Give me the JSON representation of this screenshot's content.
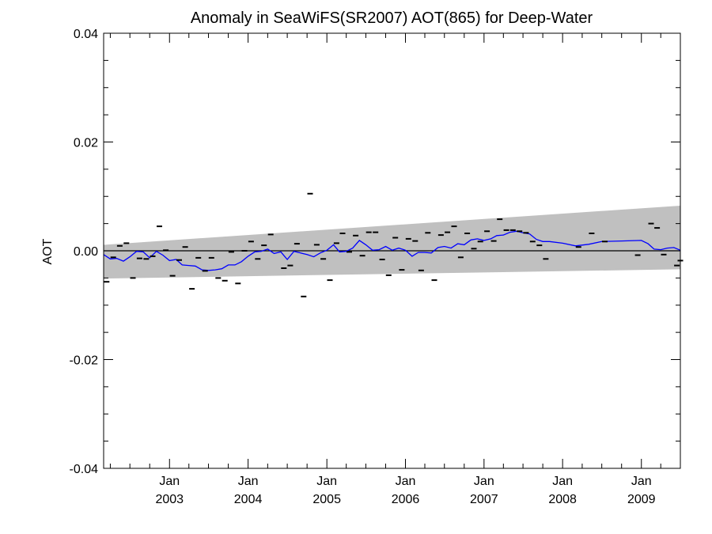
{
  "chart_data": {
    "type": "line",
    "title": "Anomaly in SeaWiFS(SR2007) AOT(865) for Deep-Water",
    "xlabel": "",
    "ylabel": "AOT",
    "xlim": [
      "2002-03-01",
      "2009-07-01"
    ],
    "ylim": [
      -0.04,
      0.04
    ],
    "y_ticks": [
      {
        "value": 0.04,
        "label": "0.04"
      },
      {
        "value": 0.02,
        "label": "0.02"
      },
      {
        "value": 0.0,
        "label": "0.00"
      },
      {
        "value": -0.02,
        "label": "-0.02"
      },
      {
        "value": -0.04,
        "label": "-0.04"
      }
    ],
    "x_ticks": [
      {
        "date": "2003-01-01",
        "month": "Jan",
        "year": "2003"
      },
      {
        "date": "2004-01-01",
        "month": "Jan",
        "year": "2004"
      },
      {
        "date": "2005-01-01",
        "month": "Jan",
        "year": "2005"
      },
      {
        "date": "2006-01-01",
        "month": "Jan",
        "year": "2006"
      },
      {
        "date": "2007-01-01",
        "month": "Jan",
        "year": "2007"
      },
      {
        "date": "2008-01-01",
        "month": "Jan",
        "year": "2008"
      },
      {
        "date": "2009-01-01",
        "month": "Jan",
        "year": "2009"
      }
    ],
    "band": {
      "color": "#c0c0c0",
      "start": {
        "date": "2002-03-01",
        "lower": -0.0051,
        "upper": 0.0011
      },
      "end": {
        "date": "2009-07-01",
        "lower": -0.0034,
        "upper": 0.0083
      }
    },
    "zero_line": {
      "value": 0.0,
      "color": "#000000"
    },
    "series": [
      {
        "style": "marks",
        "color": "#000000",
        "points": [
          {
            "date": "2002-03-15",
            "value": -0.0057
          },
          {
            "date": "2002-04-15",
            "value": -0.0012
          },
          {
            "date": "2002-05-15",
            "value": 0.0009
          },
          {
            "date": "2002-06-15",
            "value": 0.0014
          },
          {
            "date": "2002-07-15",
            "value": -0.005
          },
          {
            "date": "2002-08-15",
            "value": -0.0014
          },
          {
            "date": "2002-09-15",
            "value": -0.0015
          },
          {
            "date": "2002-10-15",
            "value": -0.001
          },
          {
            "date": "2002-11-15",
            "value": 0.0045
          },
          {
            "date": "2002-12-15",
            "value": 0.0001
          },
          {
            "date": "2003-01-15",
            "value": -0.0046
          },
          {
            "date": "2003-02-15",
            "value": -0.0017
          },
          {
            "date": "2003-03-15",
            "value": 0.0007
          },
          {
            "date": "2003-04-15",
            "value": -0.007
          },
          {
            "date": "2003-05-15",
            "value": -0.0013
          },
          {
            "date": "2003-06-15",
            "value": -0.0037
          },
          {
            "date": "2003-07-15",
            "value": -0.0013
          },
          {
            "date": "2003-08-15",
            "value": -0.005
          },
          {
            "date": "2003-09-15",
            "value": -0.0055
          },
          {
            "date": "2003-10-15",
            "value": -0.0002
          },
          {
            "date": "2003-11-15",
            "value": -0.006
          },
          {
            "date": "2003-12-15",
            "value": 0.0
          },
          {
            "date": "2004-01-15",
            "value": 0.0017
          },
          {
            "date": "2004-02-15",
            "value": -0.0015
          },
          {
            "date": "2004-03-15",
            "value": 0.001
          },
          {
            "date": "2004-04-15",
            "value": 0.003
          },
          {
            "date": "2004-06-15",
            "value": -0.0032
          },
          {
            "date": "2004-07-15",
            "value": -0.0027
          },
          {
            "date": "2004-08-15",
            "value": 0.0013
          },
          {
            "date": "2004-09-15",
            "value": -0.0084
          },
          {
            "date": "2004-10-15",
            "value": 0.0105
          },
          {
            "date": "2004-11-15",
            "value": 0.0011
          },
          {
            "date": "2004-12-15",
            "value": -0.0015
          },
          {
            "date": "2005-01-15",
            "value": -0.0054
          },
          {
            "date": "2005-02-15",
            "value": 0.0014
          },
          {
            "date": "2005-03-15",
            "value": 0.0032
          },
          {
            "date": "2005-04-15",
            "value": -0.0002
          },
          {
            "date": "2005-05-15",
            "value": 0.0028
          },
          {
            "date": "2005-06-15",
            "value": -0.0009
          },
          {
            "date": "2005-07-15",
            "value": 0.0034
          },
          {
            "date": "2005-08-15",
            "value": 0.0034
          },
          {
            "date": "2005-09-15",
            "value": -0.0016
          },
          {
            "date": "2005-10-15",
            "value": -0.0045
          },
          {
            "date": "2005-11-15",
            "value": 0.0024
          },
          {
            "date": "2005-12-15",
            "value": -0.0035
          },
          {
            "date": "2006-01-15",
            "value": 0.0022
          },
          {
            "date": "2006-02-15",
            "value": 0.0018
          },
          {
            "date": "2006-03-15",
            "value": -0.0036
          },
          {
            "date": "2006-04-15",
            "value": 0.0033
          },
          {
            "date": "2006-05-15",
            "value": -0.0054
          },
          {
            "date": "2006-06-15",
            "value": 0.0029
          },
          {
            "date": "2006-07-15",
            "value": 0.0034
          },
          {
            "date": "2006-08-15",
            "value": 0.0045
          },
          {
            "date": "2006-09-15",
            "value": -0.0012
          },
          {
            "date": "2006-10-15",
            "value": 0.0032
          },
          {
            "date": "2006-11-15",
            "value": 0.0004
          },
          {
            "date": "2006-12-15",
            "value": 0.0017
          },
          {
            "date": "2007-01-15",
            "value": 0.0036
          },
          {
            "date": "2007-02-15",
            "value": 0.0018
          },
          {
            "date": "2007-03-15",
            "value": 0.0058
          },
          {
            "date": "2007-04-15",
            "value": 0.0038
          },
          {
            "date": "2007-05-15",
            "value": 0.0038
          },
          {
            "date": "2007-06-15",
            "value": 0.0036
          },
          {
            "date": "2007-07-15",
            "value": 0.0033
          },
          {
            "date": "2007-08-15",
            "value": 0.0017
          },
          {
            "date": "2007-09-15",
            "value": 0.001
          },
          {
            "date": "2007-10-15",
            "value": -0.0015
          },
          {
            "date": "2008-03-15",
            "value": 0.0007
          },
          {
            "date": "2008-05-15",
            "value": 0.0032
          },
          {
            "date": "2008-07-15",
            "value": 0.0017
          },
          {
            "date": "2008-12-15",
            "value": -0.0008
          },
          {
            "date": "2009-02-15",
            "value": 0.005
          },
          {
            "date": "2009-03-15",
            "value": 0.0042
          },
          {
            "date": "2009-04-15",
            "value": -0.0007
          },
          {
            "date": "2009-06-15",
            "value": -0.0027
          },
          {
            "date": "2009-07-01",
            "value": -0.0018
          }
        ]
      },
      {
        "style": "line",
        "color": "#0000ff",
        "points": [
          {
            "date": "2002-03-01",
            "value": -0.0007
          },
          {
            "date": "2002-04-01",
            "value": -0.0015
          },
          {
            "date": "2002-05-01",
            "value": -0.0014
          },
          {
            "date": "2002-06-01",
            "value": -0.0019
          },
          {
            "date": "2002-07-01",
            "value": -0.0011
          },
          {
            "date": "2002-08-01",
            "value": -0.0001
          },
          {
            "date": "2002-09-01",
            "value": -0.0002
          },
          {
            "date": "2002-10-01",
            "value": -0.0013
          },
          {
            "date": "2002-11-01",
            "value": -0.0001
          },
          {
            "date": "2002-12-01",
            "value": -0.0008
          },
          {
            "date": "2003-01-01",
            "value": -0.0018
          },
          {
            "date": "2003-02-01",
            "value": -0.0016
          },
          {
            "date": "2003-03-01",
            "value": -0.0026
          },
          {
            "date": "2003-04-01",
            "value": -0.0027
          },
          {
            "date": "2003-05-01",
            "value": -0.0028
          },
          {
            "date": "2003-06-01",
            "value": -0.0035
          },
          {
            "date": "2003-07-01",
            "value": -0.0036
          },
          {
            "date": "2003-08-01",
            "value": -0.0035
          },
          {
            "date": "2003-09-01",
            "value": -0.0033
          },
          {
            "date": "2003-10-01",
            "value": -0.0026
          },
          {
            "date": "2003-11-01",
            "value": -0.0026
          },
          {
            "date": "2003-12-01",
            "value": -0.002
          },
          {
            "date": "2004-01-01",
            "value": -0.001
          },
          {
            "date": "2004-02-01",
            "value": -0.0002
          },
          {
            "date": "2004-03-01",
            "value": -0.0001
          },
          {
            "date": "2004-04-01",
            "value": 0.0003
          },
          {
            "date": "2004-05-01",
            "value": -0.0005
          },
          {
            "date": "2004-06-01",
            "value": -0.0002
          },
          {
            "date": "2004-07-01",
            "value": -0.0016
          },
          {
            "date": "2004-08-01",
            "value": -0.0001
          },
          {
            "date": "2004-09-01",
            "value": -0.0004
          },
          {
            "date": "2004-10-01",
            "value": -0.0007
          },
          {
            "date": "2004-11-01",
            "value": -0.0011
          },
          {
            "date": "2004-12-01",
            "value": -0.0004
          },
          {
            "date": "2005-01-01",
            "value": 0.0001
          },
          {
            "date": "2005-02-01",
            "value": 0.0011
          },
          {
            "date": "2005-03-01",
            "value": -0.0002
          },
          {
            "date": "2005-04-01",
            "value": -0.0001
          },
          {
            "date": "2005-05-01",
            "value": 0.0005
          },
          {
            "date": "2005-06-01",
            "value": 0.0019
          },
          {
            "date": "2005-07-01",
            "value": 0.0011
          },
          {
            "date": "2005-08-01",
            "value": 0.0001
          },
          {
            "date": "2005-09-01",
            "value": 0.0002
          },
          {
            "date": "2005-10-01",
            "value": 0.0008
          },
          {
            "date": "2005-11-01",
            "value": 0.0001
          },
          {
            "date": "2005-12-01",
            "value": 0.0005
          },
          {
            "date": "2006-01-01",
            "value": 0.0001
          },
          {
            "date": "2006-02-01",
            "value": -0.001
          },
          {
            "date": "2006-03-01",
            "value": -0.0003
          },
          {
            "date": "2006-04-01",
            "value": -0.0003
          },
          {
            "date": "2006-05-01",
            "value": -0.0004
          },
          {
            "date": "2006-06-01",
            "value": 0.0006
          },
          {
            "date": "2006-07-01",
            "value": 0.0008
          },
          {
            "date": "2006-08-01",
            "value": 0.0005
          },
          {
            "date": "2006-09-01",
            "value": 0.0013
          },
          {
            "date": "2006-10-01",
            "value": 0.0011
          },
          {
            "date": "2006-11-01",
            "value": 0.002
          },
          {
            "date": "2006-12-01",
            "value": 0.0022
          },
          {
            "date": "2007-01-01",
            "value": 0.0019
          },
          {
            "date": "2007-02-01",
            "value": 0.0022
          },
          {
            "date": "2007-03-01",
            "value": 0.0028
          },
          {
            "date": "2007-04-01",
            "value": 0.0029
          },
          {
            "date": "2007-05-01",
            "value": 0.0034
          },
          {
            "date": "2007-06-01",
            "value": 0.0036
          },
          {
            "date": "2007-07-01",
            "value": 0.0033
          },
          {
            "date": "2007-08-01",
            "value": 0.0031
          },
          {
            "date": "2007-09-01",
            "value": 0.0021
          },
          {
            "date": "2007-10-01",
            "value": 0.0017
          },
          {
            "date": "2007-11-01",
            "value": 0.0017
          },
          {
            "date": "2008-01-01",
            "value": 0.0014
          },
          {
            "date": "2008-03-01",
            "value": 0.0009
          },
          {
            "date": "2008-05-01",
            "value": 0.0012
          },
          {
            "date": "2008-07-01",
            "value": 0.0017
          },
          {
            "date": "2008-10-01",
            "value": 0.0018
          },
          {
            "date": "2009-01-01",
            "value": 0.0019
          },
          {
            "date": "2009-02-01",
            "value": 0.0013
          },
          {
            "date": "2009-03-01",
            "value": 0.0003
          },
          {
            "date": "2009-04-01",
            "value": 0.0002
          },
          {
            "date": "2009-05-01",
            "value": 0.0005
          },
          {
            "date": "2009-06-01",
            "value": 0.0006
          },
          {
            "date": "2009-07-01",
            "value": 0.0001
          }
        ]
      }
    ],
    "grid": false,
    "legend": "none"
  }
}
